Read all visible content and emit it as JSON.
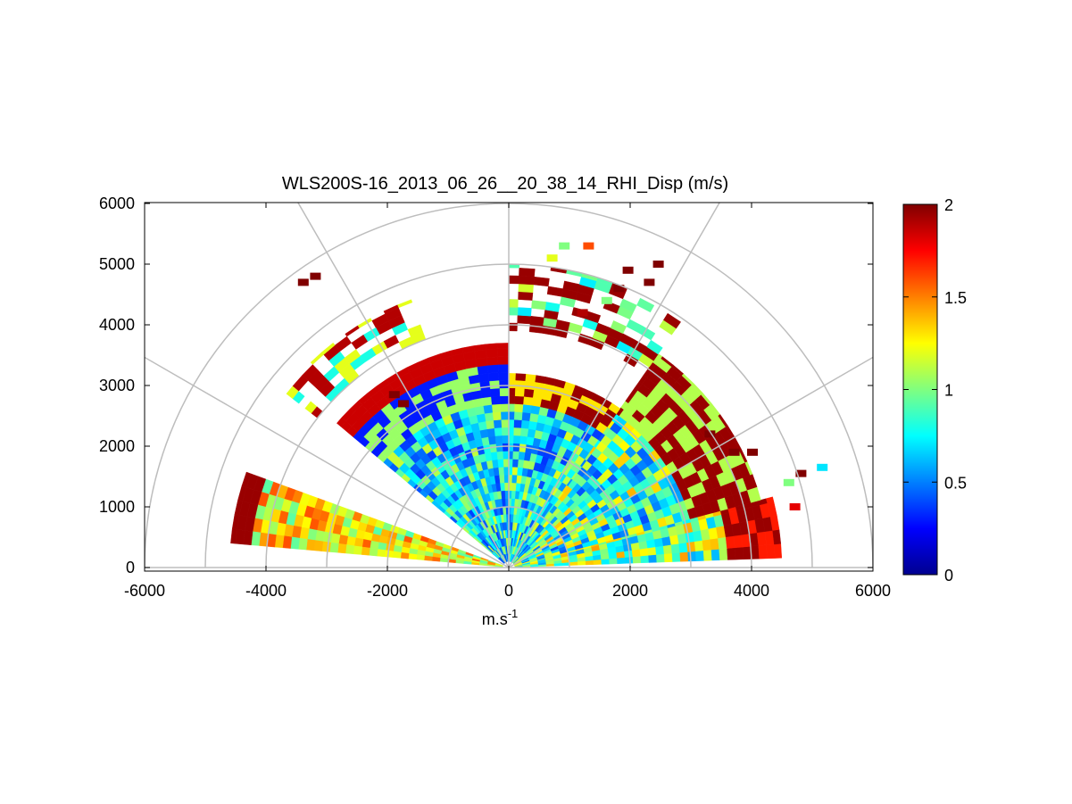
{
  "chart_data": {
    "type": "heatmap",
    "title": "WLS200S-16_2013_06_26__20_38_14_RHI_Disp (m/s)",
    "xlabel": "m.s",
    "xlabel_superscript": "-1",
    "ylabel": "",
    "xlim": [
      -6000,
      6000
    ],
    "ylim": [
      0,
      6000
    ],
    "x_ticks": [
      "-6000",
      "-4000",
      "-2000",
      "0",
      "2000",
      "4000",
      "6000"
    ],
    "y_ticks": [
      "0",
      "1000",
      "2000",
      "3000",
      "4000",
      "5000",
      "6000"
    ],
    "grid": "polar",
    "colorbar": {
      "min": 0,
      "max": 2,
      "colormap": "jet",
      "ticks": [
        "0",
        "0.5",
        "1",
        "1.5",
        "2"
      ],
      "placement": "right"
    },
    "sectors": [
      {
        "az_start": 2,
        "az_end": 15,
        "r_start": 100,
        "r_end": 4500,
        "pattern": "lower-right"
      },
      {
        "az_start": 15,
        "az_end": 55,
        "r_start": 100,
        "r_end": 4300,
        "pattern": "right-mid"
      },
      {
        "az_start": 55,
        "az_end": 90,
        "r_start": 100,
        "r_end": 3200,
        "pattern": "center-right"
      },
      {
        "az_start": 90,
        "az_end": 140,
        "r_start": 100,
        "r_end": 3700,
        "pattern": "upper-left"
      },
      {
        "az_start": 160,
        "az_end": 175,
        "r_start": 100,
        "r_end": 4600,
        "pattern": "left-low"
      },
      {
        "az_start": 110,
        "az_end": 142,
        "r_start": 4000,
        "r_end": 4700,
        "pattern": "far-left"
      },
      {
        "az_start": 55,
        "az_end": 90,
        "r_start": 3900,
        "r_end": 5000,
        "pattern": "far-center"
      }
    ],
    "sparse_cells": [
      {
        "x": 900,
        "y": 5300,
        "v": 1.0
      },
      {
        "x": 1300,
        "y": 5300,
        "v": 1.6
      },
      {
        "x": 1950,
        "y": 4900,
        "v": 2.0
      },
      {
        "x": 2450,
        "y": 5000,
        "v": 2.0
      },
      {
        "x": 2300,
        "y": 4700,
        "v": 2.0
      },
      {
        "x": 1800,
        "y": 4600,
        "v": 2.0
      },
      {
        "x": 700,
        "y": 5100,
        "v": 1.2
      },
      {
        "x": 3300,
        "y": 2200,
        "v": 2.0
      },
      {
        "x": 3700,
        "y": 1900,
        "v": 2.0
      },
      {
        "x": 4000,
        "y": 1900,
        "v": 2.0
      },
      {
        "x": 4800,
        "y": 1550,
        "v": 2.0
      },
      {
        "x": 5150,
        "y": 1650,
        "v": 0.7
      },
      {
        "x": 4600,
        "y": 1400,
        "v": 1.0
      },
      {
        "x": 4700,
        "y": 1000,
        "v": 1.8
      },
      {
        "x": -1900,
        "y": 2850,
        "v": 2.0
      },
      {
        "x": -1750,
        "y": 2700,
        "v": 2.0
      },
      {
        "x": -3200,
        "y": 4800,
        "v": 2.0
      },
      {
        "x": -3400,
        "y": 4700,
        "v": 2.0
      },
      {
        "x": 1600,
        "y": 4400,
        "v": 1.0
      },
      {
        "x": 1200,
        "y": 4200,
        "v": 1.9
      }
    ]
  }
}
